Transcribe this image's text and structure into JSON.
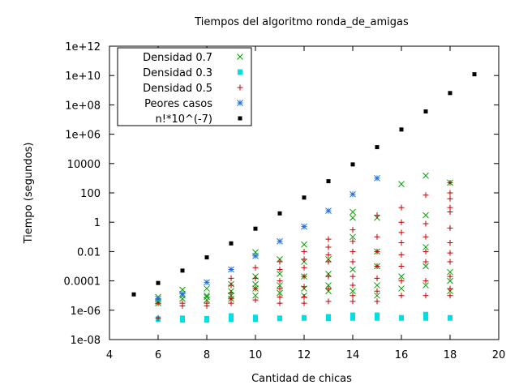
{
  "chart_data": {
    "type": "scatter",
    "title": "Tiempos del algoritmo ronda_de_amigas",
    "xlabel": "Cantidad de chicas",
    "ylabel": "Tiempo (segundos)",
    "x_scale": "linear",
    "y_scale": "log",
    "xlim": [
      4,
      20
    ],
    "ylim": [
      1e-08,
      1000000000000.0
    ],
    "x_ticks": [
      4,
      6,
      8,
      10,
      12,
      14,
      16,
      18,
      20
    ],
    "x_tick_labels": [
      "4",
      "6",
      "8",
      "10",
      "12",
      "14",
      "16",
      "18",
      "20"
    ],
    "y_ticks": [
      1e-08,
      1e-06,
      0.0001,
      0.01,
      1,
      100,
      10000,
      1000000.0,
      100000000.0,
      10000000000.0,
      1000000000000.0
    ],
    "y_tick_labels": [
      "1e-08",
      "1e-06",
      "0.0001",
      "0.01",
      "1",
      "100",
      "10000",
      "1e+06",
      "1e+08",
      "1e+10",
      "1e+12"
    ],
    "grid": false,
    "legend_position": "top-left",
    "series": [
      {
        "name": "Densidad 0.7",
        "marker": "x",
        "color": "#00a000",
        "points": [
          [
            6,
            8e-06
          ],
          [
            6,
            4e-06
          ],
          [
            6,
            3e-06
          ],
          [
            7,
            2.5e-05
          ],
          [
            7,
            1e-05
          ],
          [
            7,
            6e-06
          ],
          [
            8,
            3e-05
          ],
          [
            8,
            1e-05
          ],
          [
            8,
            8e-06
          ],
          [
            8,
            5e-06
          ],
          [
            9,
            6e-05
          ],
          [
            9,
            2e-05
          ],
          [
            9,
            1e-05
          ],
          [
            9,
            6e-06
          ],
          [
            10,
            0.009
          ],
          [
            10,
            0.0002
          ],
          [
            10,
            6e-05
          ],
          [
            10,
            3e-05
          ],
          [
            10,
            1e-05
          ],
          [
            11,
            0.003
          ],
          [
            11,
            0.0003
          ],
          [
            11,
            5e-05
          ],
          [
            11,
            1.5e-05
          ],
          [
            12,
            0.03
          ],
          [
            12,
            0.002
          ],
          [
            12,
            0.0002
          ],
          [
            12,
            3e-05
          ],
          [
            12,
            1e-05
          ],
          [
            13,
            0.003
          ],
          [
            13,
            0.0003
          ],
          [
            13,
            5e-05
          ],
          [
            13,
            2e-05
          ],
          [
            14,
            5
          ],
          [
            14,
            2
          ],
          [
            14,
            0.1
          ],
          [
            14,
            0.0006
          ],
          [
            14,
            2e-05
          ],
          [
            15,
            2
          ],
          [
            15,
            0.01
          ],
          [
            15,
            0.001
          ],
          [
            15,
            5e-05
          ],
          [
            15,
            1e-05
          ],
          [
            16,
            400
          ],
          [
            16,
            0.0002
          ],
          [
            16,
            3e-05
          ],
          [
            17,
            1500
          ],
          [
            17,
            3
          ],
          [
            17,
            0.02
          ],
          [
            17,
            0.001
          ],
          [
            17,
            5e-05
          ],
          [
            18,
            500
          ],
          [
            18,
            0.0004
          ],
          [
            18,
            0.0001
          ],
          [
            18,
            2e-05
          ]
        ]
      },
      {
        "name": "Densidad 0.3",
        "marker": "filled-square",
        "color": "#00e0e0",
        "points": [
          [
            6,
            2.5e-07
          ],
          [
            7,
            2.8e-07
          ],
          [
            7,
            2.2e-07
          ],
          [
            8,
            2.6e-07
          ],
          [
            8,
            2.2e-07
          ],
          [
            9,
            4e-07
          ],
          [
            9,
            2.5e-07
          ],
          [
            10,
            3.2e-07
          ],
          [
            10,
            2.5e-07
          ],
          [
            11,
            2.8e-07
          ],
          [
            12,
            3e-07
          ],
          [
            13,
            3.5e-07
          ],
          [
            13,
            2.8e-07
          ],
          [
            14,
            4.5e-07
          ],
          [
            14,
            3e-07
          ],
          [
            15,
            4.5e-07
          ],
          [
            15,
            3e-07
          ],
          [
            16,
            3e-07
          ],
          [
            17,
            5e-07
          ],
          [
            17,
            3e-07
          ],
          [
            18,
            3e-07
          ]
        ]
      },
      {
        "name": "Densidad 0.5",
        "marker": "+",
        "color": "#c00000",
        "points": [
          [
            6,
            3e-06
          ],
          [
            6,
            3e-07
          ],
          [
            7,
            3e-06
          ],
          [
            7,
            2e-06
          ],
          [
            8,
            3e-06
          ],
          [
            8,
            2e-06
          ],
          [
            9,
            0.00015
          ],
          [
            9,
            5e-05
          ],
          [
            9,
            1.5e-05
          ],
          [
            9,
            6e-06
          ],
          [
            9,
            3e-06
          ],
          [
            10,
            0.005
          ],
          [
            10,
            0.0008
          ],
          [
            10,
            0.00015
          ],
          [
            10,
            3e-05
          ],
          [
            10,
            5e-06
          ],
          [
            11,
            0.002
          ],
          [
            11,
            0.0006
          ],
          [
            11,
            0.0001
          ],
          [
            11,
            3e-05
          ],
          [
            11,
            8e-06
          ],
          [
            11,
            3e-06
          ],
          [
            12,
            0.01
          ],
          [
            12,
            0.003
          ],
          [
            12,
            0.0008
          ],
          [
            12,
            0.0002
          ],
          [
            12,
            4e-05
          ],
          [
            12,
            8e-06
          ],
          [
            12,
            3e-06
          ],
          [
            13,
            0.07
          ],
          [
            13,
            0.02
          ],
          [
            13,
            0.006
          ],
          [
            13,
            0.002
          ],
          [
            13,
            0.0002
          ],
          [
            13,
            3e-05
          ],
          [
            13,
            4e-06
          ],
          [
            14,
            0.3
          ],
          [
            14,
            0.05
          ],
          [
            14,
            0.01
          ],
          [
            14,
            0.002
          ],
          [
            14,
            0.0002
          ],
          [
            14,
            5e-05
          ],
          [
            14,
            1e-05
          ],
          [
            14,
            4e-06
          ],
          [
            15,
            3
          ],
          [
            15,
            0.1
          ],
          [
            15,
            0.01
          ],
          [
            15,
            0.001
          ],
          [
            15,
            0.00015
          ],
          [
            15,
            2e-05
          ],
          [
            15,
            4e-06
          ],
          [
            16,
            10
          ],
          [
            16,
            1
          ],
          [
            16,
            0.2
          ],
          [
            16,
            0.04
          ],
          [
            16,
            0.006
          ],
          [
            16,
            0.001
          ],
          [
            16,
            0.0001
          ],
          [
            16,
            1e-05
          ],
          [
            17,
            70
          ],
          [
            17,
            0.8
          ],
          [
            17,
            0.1
          ],
          [
            17,
            0.01
          ],
          [
            17,
            0.002
          ],
          [
            17,
            0.0001
          ],
          [
            17,
            1e-05
          ],
          [
            18,
            500
          ],
          [
            18,
            100
          ],
          [
            18,
            40
          ],
          [
            18,
            10
          ],
          [
            18,
            5
          ],
          [
            18,
            0.4
          ],
          [
            18,
            0.04
          ],
          [
            18,
            0.008
          ],
          [
            18,
            0.002
          ],
          [
            18,
            0.0002
          ],
          [
            18,
            3e-05
          ],
          [
            18,
            1e-05
          ]
        ]
      },
      {
        "name": "Peores casos",
        "marker": "asterisk",
        "color": "#2070e0",
        "points": [
          [
            6,
            6e-06
          ],
          [
            7,
            1.3e-05
          ],
          [
            8,
            8e-05
          ],
          [
            9,
            0.0006
          ],
          [
            10,
            0.005
          ],
          [
            11,
            0.05
          ],
          [
            12,
            0.5
          ],
          [
            13,
            6
          ],
          [
            14,
            80
          ],
          [
            15,
            1000
          ]
        ]
      },
      {
        "name": "n!*10^(-7)",
        "marker": "filled-diamond",
        "color": "#000000",
        "points": [
          [
            5,
            1.2e-05
          ],
          [
            6,
            7.2e-05
          ],
          [
            7,
            0.000504
          ],
          [
            8,
            0.004
          ],
          [
            9,
            0.036
          ],
          [
            10,
            0.363
          ],
          [
            11,
            3.99
          ],
          [
            12,
            47.9
          ],
          [
            13,
            623
          ],
          [
            14,
            8718
          ],
          [
            15,
            130767
          ],
          [
            16,
            2090000.0
          ],
          [
            17,
            35600000.0
          ],
          [
            18,
            640000000.0
          ],
          [
            19,
            12200000000.0
          ]
        ]
      }
    ]
  }
}
